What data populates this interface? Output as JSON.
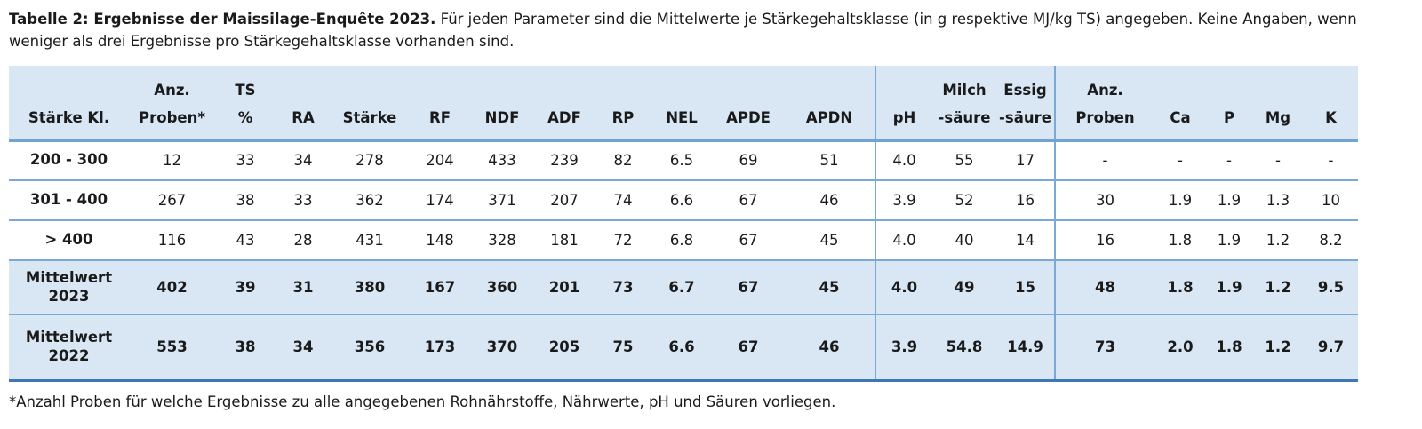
{
  "title": {
    "bold": "Tabelle 2: Ergebnisse der Maissilage-Enquête 2023.",
    "rest": " Für jeden Parameter sind die Mittelwerte je Stärkegehaltsklasse (in g respektive MJ/kg TS) angegeben. Keine Angaben, wenn weniger als drei Ergebnisse pro Stärkegehaltsklasse vorhanden sind."
  },
  "table": {
    "columns": [
      {
        "id": "staerke-kl",
        "line1": "",
        "line2": "Stärke Kl."
      },
      {
        "id": "anz-proben-star",
        "line1": "Anz.",
        "line2": "Proben*"
      },
      {
        "id": "ts",
        "line1": "TS",
        "line2": "%"
      },
      {
        "id": "ra",
        "line1": "",
        "line2": "RA"
      },
      {
        "id": "staerke",
        "line1": "",
        "line2": "Stärke"
      },
      {
        "id": "rf",
        "line1": "",
        "line2": "RF"
      },
      {
        "id": "ndf",
        "line1": "",
        "line2": "NDF"
      },
      {
        "id": "adf",
        "line1": "",
        "line2": "ADF"
      },
      {
        "id": "rp",
        "line1": "",
        "line2": "RP"
      },
      {
        "id": "nel",
        "line1": "",
        "line2": "NEL"
      },
      {
        "id": "apde",
        "line1": "",
        "line2": "APDE"
      },
      {
        "id": "apdn",
        "line1": "",
        "line2": "APDN",
        "divider_after": true
      },
      {
        "id": "ph",
        "line1": "",
        "line2": "pH"
      },
      {
        "id": "milchsaeure",
        "line1": "Milch",
        "line2": "-säure"
      },
      {
        "id": "essigsaeure",
        "line1": "Essig",
        "line2": "-säure",
        "divider_after": true
      },
      {
        "id": "anz-proben",
        "line1": "Anz.",
        "line2": "Proben"
      },
      {
        "id": "ca",
        "line1": "",
        "line2": "Ca"
      },
      {
        "id": "p",
        "line1": "",
        "line2": "P"
      },
      {
        "id": "mg",
        "line1": "",
        "line2": "Mg"
      },
      {
        "id": "k",
        "line1": "",
        "line2": "K"
      }
    ],
    "rows": [
      {
        "label": "200 - 300",
        "emphasis": false,
        "values": [
          "12",
          "33",
          "34",
          "278",
          "204",
          "433",
          "239",
          "82",
          "6.5",
          "69",
          "51",
          "4.0",
          "55",
          "17",
          "-",
          "-",
          "-",
          "-",
          "-"
        ]
      },
      {
        "label": "301 - 400",
        "emphasis": false,
        "values": [
          "267",
          "38",
          "33",
          "362",
          "174",
          "371",
          "207",
          "74",
          "6.6",
          "67",
          "46",
          "3.9",
          "52",
          "16",
          "30",
          "1.9",
          "1.9",
          "1.3",
          "10"
        ]
      },
      {
        "label": "> 400",
        "emphasis": false,
        "values": [
          "116",
          "43",
          "28",
          "431",
          "148",
          "328",
          "181",
          "72",
          "6.8",
          "67",
          "45",
          "4.0",
          "40",
          "14",
          "16",
          "1.8",
          "1.9",
          "1.2",
          "8.2"
        ]
      },
      {
        "label": "Mittelwert 2023",
        "emphasis": true,
        "values": [
          "402",
          "39",
          "31",
          "380",
          "167",
          "360",
          "201",
          "73",
          "6.7",
          "67",
          "45",
          "4.0",
          "49",
          "15",
          "48",
          "1.8",
          "1.9",
          "1.2",
          "9.5"
        ]
      },
      {
        "label": "Mittelwert 2022",
        "emphasis": true,
        "values": [
          "553",
          "38",
          "34",
          "356",
          "173",
          "370",
          "205",
          "75",
          "6.6",
          "67",
          "46",
          "3.9",
          "54.8",
          "14.9",
          "73",
          "2.0",
          "1.8",
          "1.2",
          "9.7"
        ]
      }
    ]
  },
  "footnote": "*Anzahl Proben für welche Ergebnisse zu alle angegebenen Rohnährstoffe, Nährwerte, pH und Säuren vorliegen.",
  "colors": {
    "header_bg": "#d9e7f5",
    "row_border": "#7aa9d8",
    "table_bottom_border": "#3f76b8",
    "text": "#1a1a1a"
  }
}
